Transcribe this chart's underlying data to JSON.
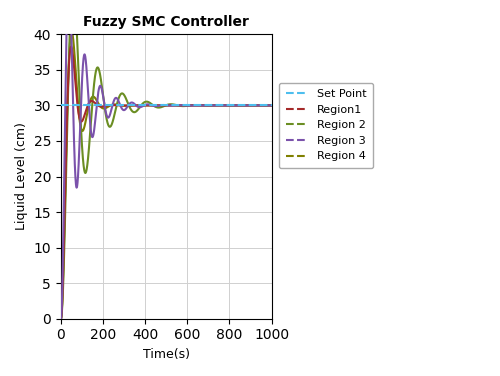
{
  "title": "Fuzzy SMC Controller",
  "xlabel": "Time(s)",
  "ylabel": "Liquid Level (cm)",
  "xlim": [
    0,
    1000
  ],
  "ylim": [
    0,
    40
  ],
  "setpoint": 30,
  "xticks": [
    0,
    200,
    400,
    600,
    800,
    1000
  ],
  "yticks": [
    0,
    5,
    10,
    15,
    20,
    25,
    30,
    35,
    40
  ],
  "legend_labels": [
    "Set Point",
    "Region1",
    "Region 2",
    "Region 3",
    "Region 4"
  ],
  "colors": {
    "setpoint": "#4DBEEE",
    "region1": "#A52A2A",
    "region2": "#D4A017",
    "region3": "#7B52AB",
    "region4": "#808000"
  },
  "background_color": "#ffffff",
  "grid_color": "#d0d0d0"
}
